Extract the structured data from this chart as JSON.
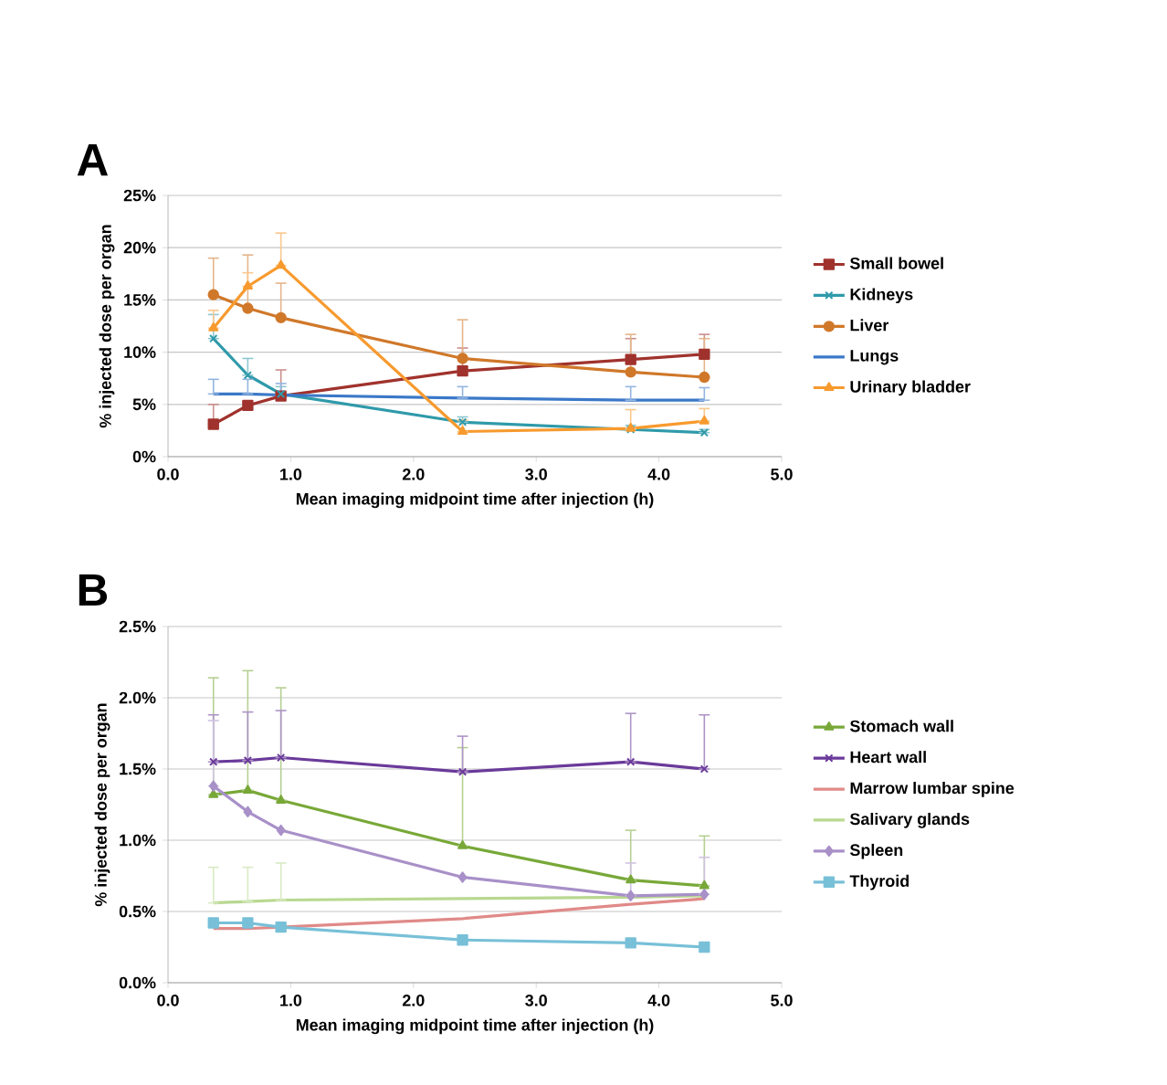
{
  "chart_data": [
    {
      "type": "line",
      "title": "A",
      "xlabel": "Mean imaging midpoint time after injection (h)",
      "ylabel": "% injected dose per organ",
      "x": [
        0.37,
        0.65,
        0.92,
        2.4,
        3.77,
        4.37
      ],
      "xlim": [
        0,
        5
      ],
      "xticks": [
        {
          "value": 0,
          "label": "0.0"
        },
        {
          "value": 1,
          "label": "1.0"
        },
        {
          "value": 2,
          "label": "2.0"
        },
        {
          "value": 3,
          "label": "3.0"
        },
        {
          "value": 4,
          "label": "4.0"
        },
        {
          "value": 5,
          "label": "5.0"
        }
      ],
      "ylim": [
        0,
        25
      ],
      "yticks": [
        {
          "value": 0,
          "label": "0%"
        },
        {
          "value": 5,
          "label": "5%"
        },
        {
          "value": 10,
          "label": "10%"
        },
        {
          "value": 15,
          "label": "15%"
        },
        {
          "value": 20,
          "label": "20%"
        },
        {
          "value": 25,
          "label": "25%"
        }
      ],
      "grid": "y",
      "legend": "right",
      "line_style": "solid",
      "series": [
        {
          "name": "Small bowel",
          "color": "#a0322d",
          "marker": "square",
          "values": [
            3.1,
            4.9,
            5.8,
            8.2,
            9.3,
            9.8
          ],
          "errors": [
            [
              3.1,
              5.0
            ],
            null,
            [
              5.8,
              8.3
            ],
            [
              8.2,
              10.4
            ],
            [
              9.3,
              11.3
            ],
            [
              9.8,
              11.7
            ]
          ]
        },
        {
          "name": "Kidneys",
          "color": "#2f9aaa",
          "marker": "cross",
          "values": [
            11.3,
            7.8,
            6.0,
            3.3,
            2.6,
            2.3
          ],
          "errors": [
            [
              11.3,
              13.6
            ],
            [
              7.8,
              9.4
            ],
            [
              6.0,
              6.7
            ],
            [
              3.3,
              3.8
            ],
            [
              2.6,
              3.0
            ],
            [
              2.3,
              2.6
            ]
          ]
        },
        {
          "name": "Liver",
          "color": "#d0782a",
          "marker": "circle",
          "values": [
            15.5,
            14.2,
            13.3,
            9.4,
            8.1,
            7.6
          ],
          "errors": [
            [
              15.5,
              19.0
            ],
            [
              14.2,
              19.3
            ],
            [
              13.3,
              16.6
            ],
            [
              9.4,
              13.1
            ],
            [
              8.1,
              11.7
            ],
            [
              7.6,
              11.3
            ]
          ]
        },
        {
          "name": "Lungs",
          "color": "#3a78c8",
          "marker": "none",
          "values": [
            6.0,
            6.0,
            5.9,
            5.6,
            5.4,
            5.4
          ],
          "errors": [
            [
              6.0,
              7.4
            ],
            [
              6.0,
              7.4
            ],
            [
              5.9,
              7.0
            ],
            [
              5.6,
              6.7
            ],
            [
              5.4,
              6.7
            ],
            [
              5.4,
              6.6
            ]
          ]
        },
        {
          "name": "Urinary bladder",
          "color": "#f79a2e",
          "marker": "triangle",
          "values": [
            12.3,
            16.3,
            18.3,
            2.4,
            2.7,
            3.4
          ],
          "errors": [
            [
              12.3,
              14.0
            ],
            [
              16.3,
              17.6
            ],
            [
              18.3,
              21.4
            ],
            [
              2.4,
              3.5
            ],
            [
              2.7,
              4.5
            ],
            [
              3.4,
              4.6
            ]
          ]
        }
      ]
    },
    {
      "type": "line",
      "title": "B",
      "xlabel": "Mean imaging midpoint time after injection (h)",
      "ylabel": "% injected dose per organ",
      "x": [
        0.37,
        0.65,
        0.92,
        2.4,
        3.77,
        4.37
      ],
      "xlim": [
        0,
        5
      ],
      "xticks": [
        {
          "value": 0,
          "label": "0.0"
        },
        {
          "value": 1,
          "label": "1.0"
        },
        {
          "value": 2,
          "label": "2.0"
        },
        {
          "value": 3,
          "label": "3.0"
        },
        {
          "value": 4,
          "label": "4.0"
        },
        {
          "value": 5,
          "label": "5.0"
        }
      ],
      "ylim": [
        0,
        2.5
      ],
      "yticks": [
        {
          "value": 0,
          "label": "0.0%"
        },
        {
          "value": 0.5,
          "label": "0.5%"
        },
        {
          "value": 1,
          "label": "1.0%"
        },
        {
          "value": 1.5,
          "label": "1.5%"
        },
        {
          "value": 2,
          "label": "2.0%"
        },
        {
          "value": 2.5,
          "label": "2.5%"
        }
      ],
      "grid": "y",
      "legend": "right",
      "line_style": "solid",
      "series": [
        {
          "name": "Stomach wall",
          "color": "#78a838",
          "marker": "triangle",
          "values": [
            1.32,
            1.35,
            1.28,
            0.96,
            0.72,
            0.68
          ],
          "errors": [
            [
              1.32,
              2.14
            ],
            [
              1.35,
              2.19
            ],
            [
              1.28,
              2.07
            ],
            [
              0.96,
              1.65
            ],
            [
              0.72,
              1.07
            ],
            [
              0.68,
              1.03
            ]
          ]
        },
        {
          "name": "Heart wall",
          "color": "#6a3a9a",
          "marker": "cross",
          "values": [
            1.55,
            1.56,
            1.58,
            1.48,
            1.55,
            1.5
          ],
          "errors": [
            [
              1.55,
              1.88
            ],
            [
              1.56,
              1.9
            ],
            [
              1.58,
              1.91
            ],
            [
              1.48,
              1.73
            ],
            [
              1.55,
              1.89
            ],
            [
              1.5,
              1.88
            ]
          ]
        },
        {
          "name": "Marrow lumbar spine",
          "color": "#e08a88",
          "marker": "none",
          "values": [
            0.38,
            0.38,
            0.39,
            0.45,
            0.55,
            0.59
          ]
        },
        {
          "name": "Salivary glands",
          "color": "#b8d890",
          "marker": "none",
          "values": [
            0.56,
            0.57,
            0.58,
            0.59,
            0.6,
            0.61
          ],
          "errors": [
            [
              0.56,
              0.81
            ],
            [
              0.57,
              0.81
            ],
            [
              0.58,
              0.84
            ],
            null,
            null,
            null
          ]
        },
        {
          "name": "Spleen",
          "color": "#a890c8",
          "marker": "diamond",
          "values": [
            1.38,
            1.2,
            1.07,
            0.74,
            0.61,
            0.62
          ],
          "errors": [
            [
              1.38,
              1.84
            ],
            null,
            null,
            null,
            [
              0.61,
              0.84
            ],
            [
              0.62,
              0.88
            ]
          ]
        },
        {
          "name": "Thyroid",
          "color": "#78c0d8",
          "marker": "square",
          "values": [
            0.42,
            0.42,
            0.39,
            0.3,
            0.28,
            0.25
          ]
        }
      ]
    }
  ]
}
